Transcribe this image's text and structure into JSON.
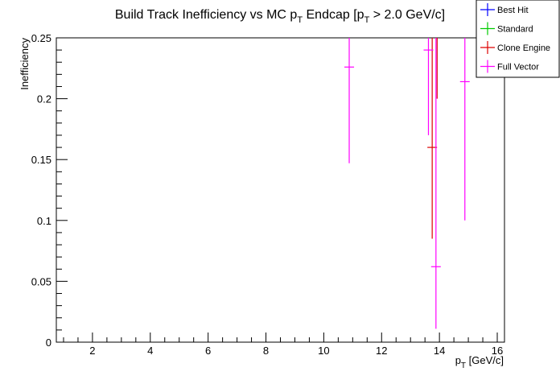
{
  "chart_data": {
    "type": "scatter",
    "title": "Build Track Inefficiency vs MC p_T Endcap [p_T > 2.0 GeV/c]",
    "title_parts": {
      "pre": "Build Track Inefficiency vs MC p",
      "sub1": "T",
      "mid": " Endcap [p",
      "sub2": "T",
      "post": " > 2.0 GeV/c]"
    },
    "xlabel": "p_T [GeV/c]",
    "xlabel_parts": {
      "pre": "p",
      "sub": "T",
      "post": " [GeV/c]"
    },
    "ylabel": "Inefficiency",
    "xlim": [
      0.75,
      16.25
    ],
    "ylim": [
      0,
      0.25
    ],
    "x_ticks": [
      2,
      4,
      6,
      8,
      10,
      12,
      14,
      16
    ],
    "y_ticks": [
      0,
      0.05,
      0.1,
      0.15,
      0.2,
      0.25
    ],
    "y_tick_labels": [
      "0",
      "0.05",
      "0.1",
      "0.15",
      "0.2",
      "0.25"
    ],
    "legend_position": "top-right",
    "series": [
      {
        "name": "Best Hit",
        "color": "#0000ff",
        "points": []
      },
      {
        "name": "Standard",
        "color": "#00cc00",
        "points": []
      },
      {
        "name": "Clone Engine",
        "color": "#dd0000",
        "points": [
          {
            "x": 13.75,
            "y": 0.16,
            "ylow": 0.085,
            "yhigh": 0.25
          },
          {
            "x": 13.92,
            "y": 0.25,
            "ylow": 0.2,
            "yhigh": 0.25
          }
        ]
      },
      {
        "name": "Full Vector",
        "color": "#ff00ff",
        "points": [
          {
            "x": 10.88,
            "y": 0.226,
            "ylow": 0.147,
            "yhigh": 0.25
          },
          {
            "x": 13.62,
            "y": 0.24,
            "ylow": 0.17,
            "yhigh": 0.25
          },
          {
            "x": 13.88,
            "y": 0.062,
            "ylow": 0.011,
            "yhigh": 0.25
          },
          {
            "x": 14.88,
            "y": 0.214,
            "ylow": 0.1,
            "yhigh": 0.25
          }
        ]
      }
    ]
  }
}
